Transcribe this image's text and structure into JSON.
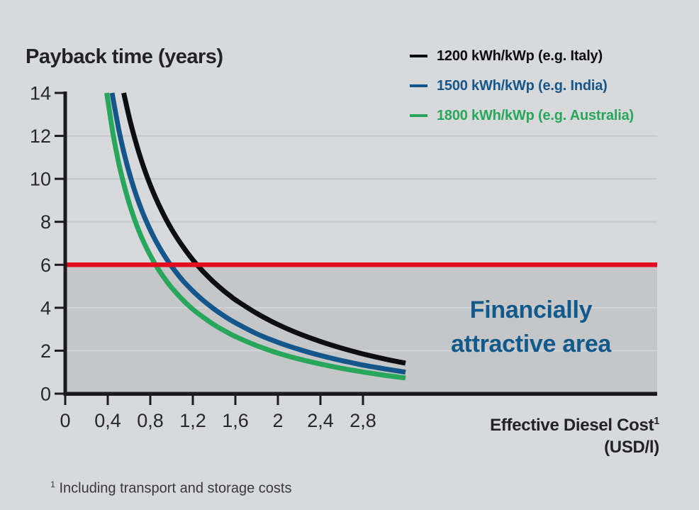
{
  "colors": {
    "background": "#d8d9db",
    "shaded_area": "#c5c6c8",
    "grid_upper": "#c6c8ca",
    "grid_lower": "#d2d3d5",
    "axis": "#1b1b1d",
    "tick_text": "#28282a",
    "threshold_red": "#e20c20",
    "annotation_blue": "#135a8c"
  },
  "x_axis": {
    "title_text": "Effective Diesel Cost",
    "title_sup": "1",
    "title_line2": "(USD/l)"
  },
  "footnote": {
    "sup": "1",
    "text": "Including transport and storage costs"
  },
  "chart_data": {
    "type": "line",
    "title": "Payback time (years)",
    "xlabel": "Effective Diesel Cost (USD/l)",
    "ylabel": "Payback time (years)",
    "xlim": [
      0,
      3.35
    ],
    "ylim": [
      0,
      14
    ],
    "grid": "horizontal",
    "legend_position": "top-right",
    "x_ticks": {
      "values": [
        0,
        0.4,
        0.8,
        1.2,
        1.6,
        2,
        2.4,
        2.8
      ],
      "labels": [
        "0",
        "0,4",
        "0,8",
        "1,2",
        "1,6",
        "2",
        "2,4",
        "2,8"
      ]
    },
    "y_ticks": {
      "values": [
        0,
        2,
        4,
        6,
        8,
        10,
        12,
        14
      ],
      "labels": [
        "0",
        "2",
        "4",
        "6",
        "8",
        "10",
        "12",
        "14"
      ]
    },
    "gridlines_y_upper": [
      8,
      10,
      12
    ],
    "gridlines_y_lower": [
      2,
      4
    ],
    "threshold_line": {
      "y": 6,
      "color": "#e20c20"
    },
    "shaded_area": {
      "below_y": 6,
      "fill": "#c5c6c8",
      "meaning": "Financially attractive area"
    },
    "annotation": {
      "line1": "Financially",
      "line2": "attractive area",
      "color": "#135a8c"
    },
    "series": [
      {
        "name": "1200 kWh/kWp (e.g. Italy)",
        "color": "#0e0e10",
        "points": [
          [
            0.55,
            14
          ],
          [
            0.6,
            12.9
          ],
          [
            0.65,
            11.95
          ],
          [
            0.7,
            11.11
          ],
          [
            0.75,
            10.37
          ],
          [
            0.8,
            9.71
          ],
          [
            0.85,
            9.12
          ],
          [
            0.9,
            8.59
          ],
          [
            0.95,
            8.1
          ],
          [
            1.0,
            7.66
          ],
          [
            1.05,
            7.26
          ],
          [
            1.1,
            6.89
          ],
          [
            1.15,
            6.55
          ],
          [
            1.2,
            6.23
          ],
          [
            1.25,
            5.94
          ],
          [
            1.3,
            5.67
          ],
          [
            1.35,
            5.42
          ],
          [
            1.4,
            5.18
          ],
          [
            1.45,
            4.96
          ],
          [
            1.5,
            4.75
          ],
          [
            1.55,
            4.56
          ],
          [
            1.6,
            4.37
          ],
          [
            1.8,
            3.74
          ],
          [
            2.0,
            3.22
          ],
          [
            2.2,
            2.79
          ],
          [
            2.4,
            2.43
          ],
          [
            2.6,
            2.12
          ],
          [
            2.8,
            1.85
          ],
          [
            3.0,
            1.62
          ],
          [
            3.2,
            1.42
          ]
        ]
      },
      {
        "name": "1500 kWh/kWp (e.g. India)",
        "color": "#15578b",
        "points": [
          [
            0.44,
            14
          ],
          [
            0.5,
            12.38
          ],
          [
            0.55,
            11.26
          ],
          [
            0.6,
            10.32
          ],
          [
            0.65,
            9.5
          ],
          [
            0.7,
            8.79
          ],
          [
            0.75,
            8.17
          ],
          [
            0.8,
            7.62
          ],
          [
            0.85,
            7.13
          ],
          [
            0.9,
            6.69
          ],
          [
            0.95,
            6.29
          ],
          [
            1.0,
            5.93
          ],
          [
            1.1,
            5.3
          ],
          [
            1.2,
            4.78
          ],
          [
            1.3,
            4.33
          ],
          [
            1.4,
            3.94
          ],
          [
            1.5,
            3.6
          ],
          [
            1.6,
            3.3
          ],
          [
            1.8,
            2.79
          ],
          [
            2.0,
            2.39
          ],
          [
            2.2,
            2.06
          ],
          [
            2.4,
            1.78
          ],
          [
            2.6,
            1.54
          ],
          [
            2.8,
            1.33
          ],
          [
            3.0,
            1.16
          ],
          [
            3.2,
            1.0
          ]
        ]
      },
      {
        "name": "1800 kWh/kWp (e.g. Australia)",
        "color": "#28a75c",
        "points": [
          [
            0.39,
            14
          ],
          [
            0.45,
            12.08
          ],
          [
            0.5,
            10.81
          ],
          [
            0.55,
            9.77
          ],
          [
            0.6,
            8.89
          ],
          [
            0.65,
            8.14
          ],
          [
            0.7,
            7.49
          ],
          [
            0.75,
            6.93
          ],
          [
            0.8,
            6.44
          ],
          [
            0.85,
            6.0
          ],
          [
            0.9,
            5.61
          ],
          [
            0.95,
            5.26
          ],
          [
            1.0,
            4.94
          ],
          [
            1.1,
            4.39
          ],
          [
            1.2,
            3.93
          ],
          [
            1.3,
            3.55
          ],
          [
            1.4,
            3.21
          ],
          [
            1.5,
            2.92
          ],
          [
            1.6,
            2.66
          ],
          [
            1.8,
            2.24
          ],
          [
            2.0,
            1.89
          ],
          [
            2.2,
            1.61
          ],
          [
            2.4,
            1.38
          ],
          [
            2.6,
            1.18
          ],
          [
            2.8,
            1.01
          ],
          [
            3.0,
            0.86
          ],
          [
            3.2,
            0.73
          ]
        ]
      }
    ]
  }
}
